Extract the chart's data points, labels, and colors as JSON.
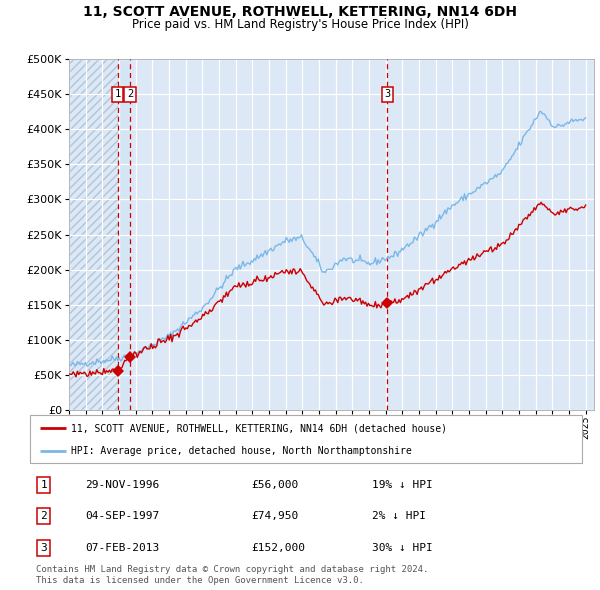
{
  "title": "11, SCOTT AVENUE, ROTHWELL, KETTERING, NN14 6DH",
  "subtitle": "Price paid vs. HM Land Registry's House Price Index (HPI)",
  "sale_prices": [
    56000,
    74950,
    152000
  ],
  "sale_labels": [
    "1",
    "2",
    "3"
  ],
  "sale_hpi_pct": [
    "19% ↓ HPI",
    "2% ↓ HPI",
    "30% ↓ HPI"
  ],
  "sale_date_strs": [
    "29-NOV-1996",
    "04-SEP-1997",
    "07-FEB-2013"
  ],
  "sale_price_strs": [
    "£56,000",
    "£74,950",
    "£152,000"
  ],
  "legend_line1": "11, SCOTT AVENUE, ROTHWELL, KETTERING, NN14 6DH (detached house)",
  "legend_line2": "HPI: Average price, detached house, North Northamptonshire",
  "footer": "Contains HM Land Registry data © Crown copyright and database right 2024.\nThis data is licensed under the Open Government Licence v3.0.",
  "hpi_color": "#7ab8e8",
  "price_color": "#cc0000",
  "vline_color": "#cc0000",
  "bg_chart_color": "#dce8f5",
  "grid_color": "#ffffff",
  "ylim": [
    0,
    500000
  ],
  "yticks": [
    0,
    50000,
    100000,
    150000,
    200000,
    250000,
    300000,
    350000,
    400000,
    450000,
    500000
  ],
  "xlim_start": 1994.0,
  "xlim_end": 2025.5,
  "sale_decimal": [
    1996.9167,
    1997.6667,
    2013.1083
  ]
}
